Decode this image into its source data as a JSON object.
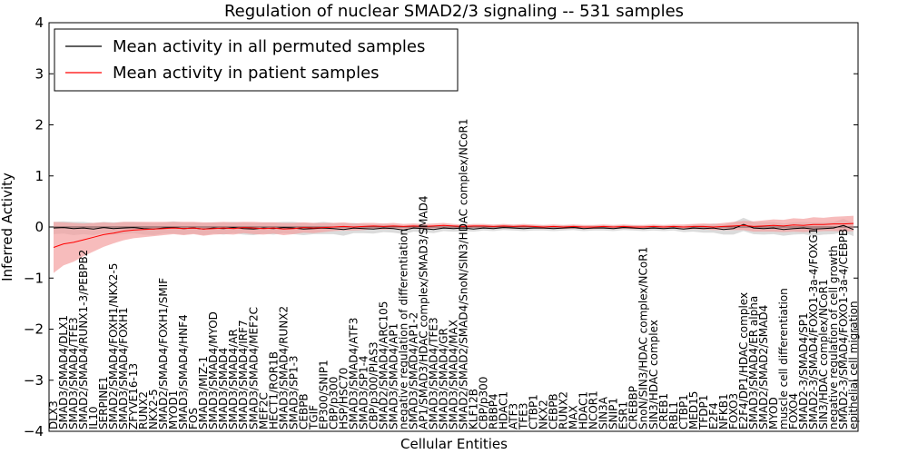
{
  "chart_data": {
    "type": "line",
    "title": "Regulation of nuclear SMAD2/3 signaling -- 531 samples",
    "xlabel": "Cellular Entities",
    "ylabel": "Inferred Activity",
    "ylim": [
      -4,
      4
    ],
    "yticks": [
      -4,
      -3,
      -2,
      -1,
      0,
      1,
      2,
      3,
      4
    ],
    "n_points": 81,
    "legend_position": "top-left",
    "series": [
      {
        "name": "Mean activity in all permuted samples",
        "color": "#000000",
        "band_color": "#bdbdbd",
        "values": [
          -0.02,
          -0.01,
          -0.03,
          -0.02,
          -0.04,
          -0.01,
          -0.03,
          -0.02,
          -0.01,
          -0.03,
          -0.04,
          -0.02,
          -0.01,
          -0.03,
          -0.02,
          -0.04,
          -0.02,
          -0.03,
          -0.01,
          -0.03,
          -0.04,
          -0.02,
          -0.03,
          -0.01,
          -0.02,
          -0.04,
          -0.03,
          -0.02,
          -0.03,
          -0.05,
          -0.02,
          -0.03,
          -0.04,
          -0.02,
          -0.03,
          -0.06,
          -0.02,
          -0.03,
          -0.05,
          -0.02,
          -0.03,
          -0.02,
          -0.04,
          -0.02,
          -0.03,
          -0.01,
          -0.02,
          -0.03,
          -0.02,
          -0.02,
          -0.03,
          -0.02,
          -0.01,
          -0.03,
          -0.02,
          -0.02,
          -0.03,
          -0.01,
          -0.02,
          -0.03,
          -0.02,
          -0.03,
          -0.02,
          -0.04,
          -0.02,
          -0.03,
          -0.02,
          -0.05,
          -0.03,
          0.05,
          -0.02,
          -0.03,
          -0.02,
          -0.05,
          -0.03,
          -0.02,
          -0.04,
          -0.03,
          -0.02,
          0.03,
          -0.05
        ],
        "spread": [
          0.12,
          0.12,
          0.13,
          0.12,
          0.12,
          0.11,
          0.12,
          0.12,
          0.11,
          0.12,
          0.12,
          0.11,
          0.12,
          0.12,
          0.11,
          0.12,
          0.11,
          0.12,
          0.11,
          0.12,
          0.12,
          0.11,
          0.12,
          0.11,
          0.12,
          0.12,
          0.11,
          0.12,
          0.11,
          0.12,
          0.1,
          0.09,
          0.09,
          0.08,
          0.08,
          0.08,
          0.07,
          0.07,
          0.07,
          0.06,
          0.06,
          0.06,
          0.05,
          0.05,
          0.05,
          0.05,
          0.05,
          0.05,
          0.05,
          0.05,
          0.05,
          0.05,
          0.05,
          0.05,
          0.05,
          0.05,
          0.05,
          0.05,
          0.05,
          0.05,
          0.05,
          0.05,
          0.05,
          0.06,
          0.07,
          0.08,
          0.09,
          0.1,
          0.12,
          0.13,
          0.12,
          0.12,
          0.12,
          0.12,
          0.12,
          0.12,
          0.13,
          0.12,
          0.12,
          0.13,
          0.13
        ]
      },
      {
        "name": "Mean activity in patient samples",
        "color": "#ff0000",
        "band_color": "#f4a0a0",
        "values": [
          -0.4,
          -0.33,
          -0.3,
          -0.25,
          -0.2,
          -0.15,
          -0.12,
          -0.08,
          -0.06,
          -0.05,
          -0.04,
          -0.03,
          -0.02,
          -0.03,
          -0.02,
          -0.04,
          -0.03,
          -0.02,
          -0.03,
          -0.01,
          -0.02,
          -0.03,
          -0.02,
          -0.04,
          -0.03,
          -0.01,
          -0.02,
          -0.01,
          0.0,
          0.01,
          0.0,
          0.01,
          0.02,
          0.01,
          0.02,
          0.01,
          0.02,
          0.01,
          0.02,
          0.03,
          0.02,
          0.01,
          0.02,
          0.02,
          0.01,
          0.02,
          0.01,
          0.02,
          0.01,
          0.0,
          0.01,
          0.0,
          0.01,
          0.0,
          0.0,
          0.01,
          0.0,
          0.01,
          0.0,
          0.0,
          0.01,
          0.0,
          0.01,
          0.0,
          0.01,
          0.01,
          0.0,
          0.01,
          0.02,
          0.03,
          0.01,
          0.02,
          0.03,
          0.02,
          0.04,
          0.03,
          0.05,
          0.05,
          0.06,
          0.06,
          0.07
        ],
        "spread": [
          0.5,
          0.42,
          0.38,
          0.32,
          0.28,
          0.24,
          0.2,
          0.18,
          0.16,
          0.15,
          0.14,
          0.13,
          0.12,
          0.13,
          0.12,
          0.13,
          0.12,
          0.12,
          0.12,
          0.11,
          0.12,
          0.12,
          0.11,
          0.12,
          0.11,
          0.1,
          0.1,
          0.09,
          0.08,
          0.08,
          0.07,
          0.07,
          0.06,
          0.06,
          0.06,
          0.05,
          0.05,
          0.05,
          0.05,
          0.05,
          0.04,
          0.04,
          0.04,
          0.04,
          0.04,
          0.04,
          0.04,
          0.04,
          0.04,
          0.04,
          0.04,
          0.04,
          0.04,
          0.04,
          0.04,
          0.04,
          0.04,
          0.04,
          0.04,
          0.04,
          0.04,
          0.04,
          0.04,
          0.05,
          0.05,
          0.06,
          0.06,
          0.07,
          0.08,
          0.09,
          0.1,
          0.11,
          0.12,
          0.12,
          0.13,
          0.13,
          0.14,
          0.13,
          0.14,
          0.15,
          0.15
        ]
      }
    ],
    "entity_labels": [
      {
        "i": 0,
        "text": "DLX3"
      },
      {
        "i": 1,
        "text": "SMAD3/SMAD4/DLX1"
      },
      {
        "i": 2,
        "text": "SMAD3/SMAD4/TFE3"
      },
      {
        "i": 3,
        "text": "SMAD2/SMAD4/RUNX1-3/PEBPB2"
      },
      {
        "i": 4,
        "text": "IL10"
      },
      {
        "i": 5,
        "text": "SERPINE1"
      },
      {
        "i": 6,
        "text": "SMAD2/SMAD4/FOXH1/NKX2-5"
      },
      {
        "i": 7,
        "text": "SMAD3/SMAD4/FOXH1"
      },
      {
        "i": 8,
        "text": "ZFYVE16-13"
      },
      {
        "i": 9,
        "text": "RUNX2"
      },
      {
        "i": 10,
        "text": "NKX2-5"
      },
      {
        "i": 11,
        "text": "SMAD2/SMAD4/FOXH1/SMIF"
      },
      {
        "i": 12,
        "text": "MYOD1"
      },
      {
        "i": 13,
        "text": "SMAD3/SMAD4/HNF4"
      },
      {
        "i": 14,
        "text": "FOS"
      },
      {
        "i": 15,
        "text": "SMAD3/MIZ-1"
      },
      {
        "i": 16,
        "text": "SMAD3/SMAD4/MYOD"
      },
      {
        "i": 17,
        "text": "SMAD3/SMAD4"
      },
      {
        "i": 18,
        "text": "SMAD3/SMAD4/AR"
      },
      {
        "i": 19,
        "text": "SMAD3/SMAD4/IRF7"
      },
      {
        "i": 20,
        "text": "SMAD3/SMAD4/MEF2C"
      },
      {
        "i": 21,
        "text": "MEF2C"
      },
      {
        "i": 22,
        "text": "HECT1/ROR1B"
      },
      {
        "i": 23,
        "text": "SMAD3/SMAD4/RUNX2"
      },
      {
        "i": 24,
        "text": "SMAD3/SP1-3"
      },
      {
        "i": 25,
        "text": "CEBPB"
      },
      {
        "i": 26,
        "text": "TGIF"
      },
      {
        "i": 27,
        "text": "EP300/SNIP1"
      },
      {
        "i": 28,
        "text": "CBP/p300"
      },
      {
        "i": 29,
        "text": "HSP/HSC70"
      },
      {
        "i": 30,
        "text": "SMAD3/SMAD4/ATF3"
      },
      {
        "i": 31,
        "text": "SMAD3/SP1-4"
      },
      {
        "i": 32,
        "text": "CBP/p300/PIAS3"
      },
      {
        "i": 33,
        "text": "SMAD2/SMAD4/ARC105"
      },
      {
        "i": 34,
        "text": "SMAD3/SMAD4/AP1"
      },
      {
        "i": 35,
        "text": "negative regulation of differentiation"
      },
      {
        "i": 36,
        "text": "SMAD3/SMAD4/AP1-2"
      },
      {
        "i": 37,
        "text": "AP1/SMAD3/HDAC complex/SMAD3/SMAD4"
      },
      {
        "i": 38,
        "text": "SMAD3/SMAD4/TFE3"
      },
      {
        "i": 39,
        "text": "SMAD3/SMAD4/GR"
      },
      {
        "i": 40,
        "text": "SMAD3/SMAD4/MAX"
      },
      {
        "i": 41,
        "text": "SMAD2/SMAD2/SMAD4/SnoN/SIN3/HDAC complex/NCoR1"
      },
      {
        "i": 42,
        "text": "KLF12B"
      },
      {
        "i": 43,
        "text": "CBP/p300"
      },
      {
        "i": 44,
        "text": "RBBP4"
      },
      {
        "i": 45,
        "text": "HDAC1"
      },
      {
        "i": 46,
        "text": "ATF3"
      },
      {
        "i": 47,
        "text": "TFE3"
      },
      {
        "i": 48,
        "text": "CTBP1"
      },
      {
        "i": 49,
        "text": "NKX2"
      },
      {
        "i": 50,
        "text": "CEBPB"
      },
      {
        "i": 51,
        "text": "RUNX2"
      },
      {
        "i": 52,
        "text": "MAX"
      },
      {
        "i": 53,
        "text": "HDAC1"
      },
      {
        "i": 54,
        "text": "NCOR1"
      },
      {
        "i": 55,
        "text": "SIN3A"
      },
      {
        "i": 56,
        "text": "SNIP1"
      },
      {
        "i": 57,
        "text": "ESR1"
      },
      {
        "i": 58,
        "text": "CREBBP"
      },
      {
        "i": 59,
        "text": "SnoN/SIN3/HDAC complex/NCoR1"
      },
      {
        "i": 60,
        "text": "SIN3/HDAC complex"
      },
      {
        "i": 61,
        "text": "CREB1"
      },
      {
        "i": 62,
        "text": "RBL1"
      },
      {
        "i": 63,
        "text": "CTBP1"
      },
      {
        "i": 64,
        "text": "MED15"
      },
      {
        "i": 65,
        "text": "TFDP1"
      },
      {
        "i": 66,
        "text": "E2F4"
      },
      {
        "i": 67,
        "text": "NFKB1"
      },
      {
        "i": 68,
        "text": "FOXO3"
      },
      {
        "i": 69,
        "text": "E2F4/DP1/HDAC complex"
      },
      {
        "i": 70,
        "text": "SMAD3/SMAD4/ER alpha"
      },
      {
        "i": 71,
        "text": "SMAD2/SMAD2/SMAD4"
      },
      {
        "i": 72,
        "text": "MYOD"
      },
      {
        "i": 73,
        "text": "muscle cell differentiation"
      },
      {
        "i": 74,
        "text": "FOXO4"
      },
      {
        "i": 75,
        "text": "SMAD2-3/SMAD4/SP1"
      },
      {
        "i": 76,
        "text": "SMAD2-3/SMAD4/FOXO1-3a-4/FOXG1"
      },
      {
        "i": 77,
        "text": "SIN3/HDAC complex/NCoR1"
      },
      {
        "i": 78,
        "text": "negative regulation of cell growth"
      },
      {
        "i": 79,
        "text": "SMAD2-3/SMAD4/FOXO1-3a-4/CEBPB"
      },
      {
        "i": 80,
        "text": "epithelial cell migration"
      }
    ]
  }
}
